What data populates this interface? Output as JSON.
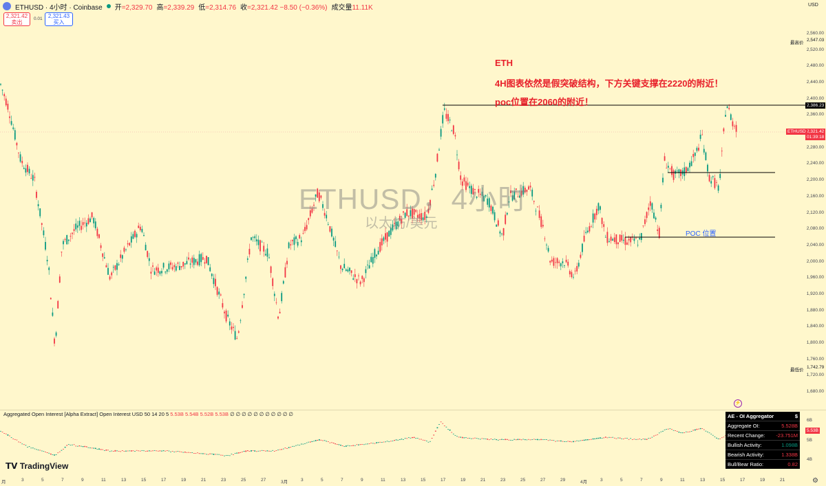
{
  "header": {
    "symbol": "ETHUSD · 4小时 · Coinbase",
    "open_label": "开",
    "open": "=2,329.70",
    "high_label": "高",
    "high": "=2,339.29",
    "low_label": "低",
    "low": "=2,314.76",
    "close_label": "收",
    "close": "=2,321.42 −8.50 (−0.36%)",
    "volume_label": "成交量",
    "volume": "11.11K",
    "currency": "USD"
  },
  "trade": {
    "sell_price": "2,321.42",
    "sell_label": "卖出",
    "spread": "0.01",
    "buy_price": "2,321.43",
    "buy_label": "买入"
  },
  "watermark": {
    "title": "ETHUSD，4小时",
    "subtitle": "以太坊/美元"
  },
  "annotations": {
    "line1": "ETH",
    "line2": "4H图表依然是假突破结构，下方关键支撑在2220的附近！",
    "line3": "poc位置在2060的附近！",
    "poc": "POC 位置"
  },
  "price_axis": {
    "ticks": [
      "2,560.00",
      "2,520.00",
      "2,480.00",
      "2,440.00",
      "2,400.00",
      "2,360.00",
      "2,320.00",
      "2,280.00",
      "2,240.00",
      "2,200.00",
      "2,160.00",
      "2,120.00",
      "2,080.00",
      "2,040.00",
      "2,000.00",
      "1,960.00",
      "1,920.00",
      "1,880.00",
      "1,840.00",
      "1,800.00",
      "1,760.00",
      "1,720.00",
      "1,680.00"
    ],
    "high_tag_label": "最高价",
    "high_tag": "2,547.03",
    "level_tag": "2,386.23",
    "pair_tag": "ETHUSD",
    "last_tag": "2,321.42",
    "countdown": "01:39:18",
    "low_tag_label": "最低价",
    "low_tag": "1,742.79"
  },
  "indicator": {
    "title": "Aggregated Open Interest [Alpha Extract] Open Interest USD 50 14 20 5",
    "values": [
      "5.53B",
      "5.54B",
      "5.52B",
      "5.53B"
    ],
    "axis_ticks": [
      "6B",
      "5B",
      "4B"
    ],
    "last_tag": "5.53B"
  },
  "oi_panel": {
    "title": "AE - OI Aggregator",
    "title_value": "$",
    "rows": [
      {
        "label": "Aggregate OI:",
        "value": "5.528B"
      },
      {
        "label": "Recent Change:",
        "value": "-23.751M"
      },
      {
        "label": "Bullish Activity:",
        "value": "1.098B"
      },
      {
        "label": "Bearish Activity:",
        "value": "1.338B"
      },
      {
        "label": "Bull/Bear Ratio:",
        "value": "0.82"
      }
    ]
  },
  "time_axis": [
    "月",
    "3",
    "5",
    "7",
    "9",
    "11",
    "13",
    "15",
    "17",
    "19",
    "21",
    "23",
    "25",
    "27",
    "3月",
    "3",
    "5",
    "7",
    "9",
    "11",
    "13",
    "15",
    "17",
    "19",
    "21",
    "23",
    "25",
    "27",
    "29",
    "4月",
    "3",
    "5",
    "7",
    "9",
    "11",
    "13",
    "15",
    "17",
    "19",
    "21"
  ],
  "logo": "TradingView",
  "colors": {
    "bull": "#089981",
    "bear": "#f23645",
    "background": "#fff7cc",
    "note": "#e8202a",
    "poc_text": "#2962ff"
  }
}
